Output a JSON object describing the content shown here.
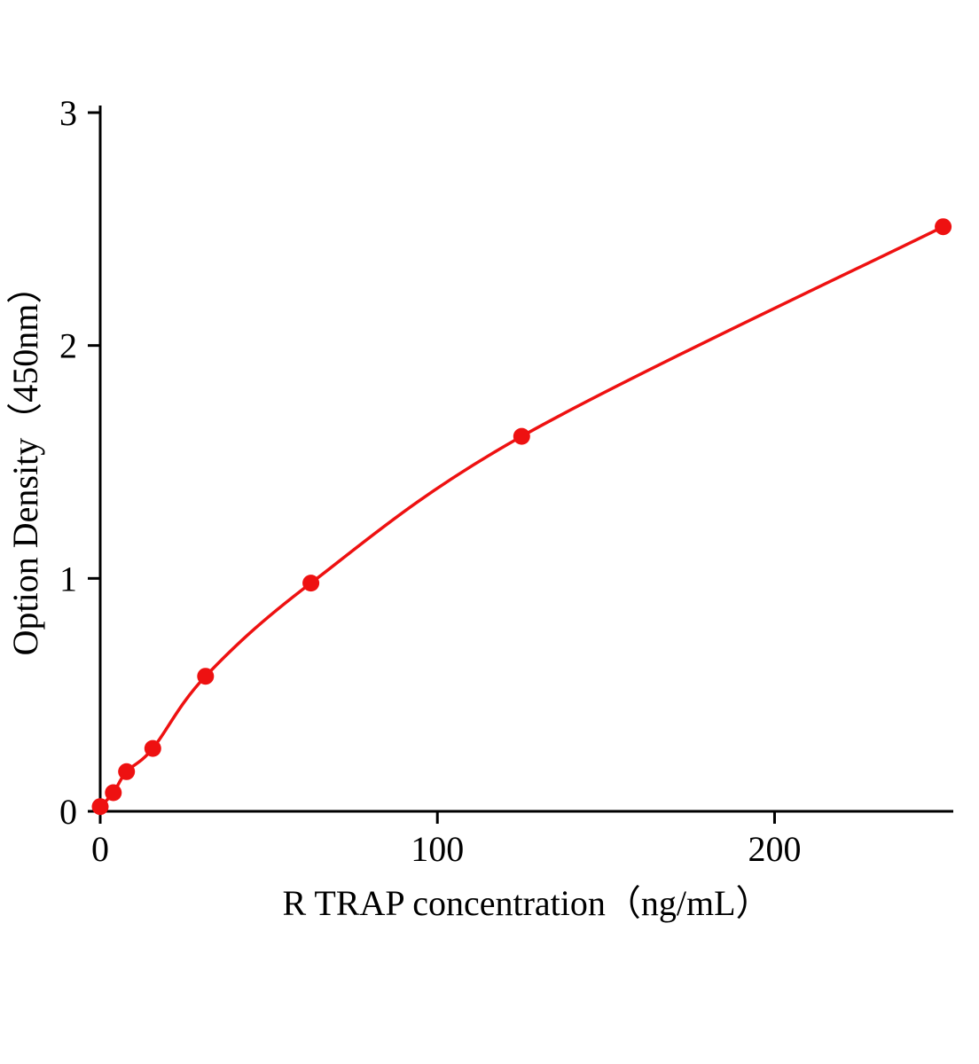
{
  "chart_data": {
    "type": "line",
    "title": "",
    "xlabel": "R TRAP  concentration（ng/mL）",
    "ylabel": "Option Density（450nm）",
    "x": [
      0,
      3.9,
      7.8,
      15.6,
      31.25,
      62.5,
      125,
      250
    ],
    "y": [
      0.02,
      0.08,
      0.17,
      0.27,
      0.58,
      0.98,
      1.61,
      2.51
    ],
    "xlim": [
      0,
      253
    ],
    "ylim": [
      0,
      3
    ],
    "x_ticks": [
      0,
      100,
      200
    ],
    "y_ticks": [
      0,
      1,
      2,
      3
    ],
    "legend": [],
    "grid": false,
    "line_color": "#ee1111",
    "marker_color": "#ee1111",
    "axis_color": "#000000",
    "background_color": "#ffffff"
  }
}
